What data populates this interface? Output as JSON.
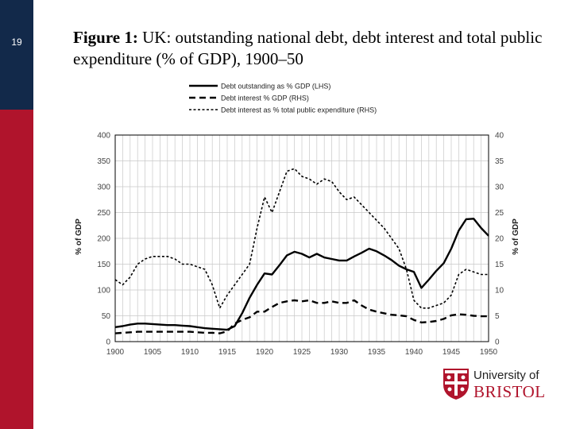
{
  "slide": {
    "number": "19",
    "title_bold": "Figure 1:",
    "title_rest": " UK: outstanding national debt, debt interest and total public expenditure (% of GDP), 1900–50"
  },
  "logo": {
    "line1": "University of",
    "line2": "BRISTOL"
  },
  "colors": {
    "navy": "#12294a",
    "crimson": "#b0142c"
  },
  "chart_data": {
    "type": "line",
    "title": "",
    "xlabel": "",
    "ylabel": "% of GDP",
    "y2label": "% of GDP",
    "xlim": [
      1900,
      1950
    ],
    "ylim": [
      0,
      400
    ],
    "y2lim": [
      0,
      40
    ],
    "xticks": [
      "1900",
      "1905",
      "1910",
      "1915",
      "1920",
      "1925",
      "1930",
      "1935",
      "1940",
      "1945",
      "1950"
    ],
    "yticks": [
      "0",
      "50",
      "100",
      "150",
      "200",
      "250",
      "300",
      "350",
      "400"
    ],
    "y2ticks": [
      "0",
      "5",
      "10",
      "15",
      "20",
      "25",
      "30",
      "35",
      "40"
    ],
    "legend_position": "top",
    "grid": true,
    "x": [
      1900,
      1901,
      1902,
      1903,
      1904,
      1905,
      1906,
      1907,
      1908,
      1909,
      1910,
      1911,
      1912,
      1913,
      1914,
      1915,
      1916,
      1917,
      1918,
      1919,
      1920,
      1921,
      1922,
      1923,
      1924,
      1925,
      1926,
      1927,
      1928,
      1929,
      1930,
      1931,
      1932,
      1933,
      1934,
      1935,
      1936,
      1937,
      1938,
      1939,
      1940,
      1941,
      1942,
      1943,
      1944,
      1945,
      1946,
      1947,
      1948,
      1949,
      1950
    ],
    "series": [
      {
        "name": "Debt outstanding as % GDP (LHS)",
        "axis": "left",
        "style": "solid",
        "values": [
          28,
          30,
          33,
          35,
          35,
          34,
          33,
          32,
          32,
          31,
          30,
          28,
          26,
          25,
          24,
          23,
          30,
          55,
          85,
          110,
          132,
          130,
          148,
          167,
          174,
          170,
          163,
          170,
          163,
          160,
          157,
          157,
          165,
          172,
          180,
          175,
          167,
          158,
          147,
          140,
          135,
          104,
          120,
          137,
          152,
          180,
          215,
          237,
          238,
          220,
          205
        ]
      },
      {
        "name": "Debt interest % GDP (RHS)",
        "axis": "right",
        "style": "dash",
        "values": [
          1.6,
          1.7,
          1.8,
          1.9,
          1.9,
          1.9,
          1.9,
          1.9,
          1.9,
          1.9,
          1.9,
          1.8,
          1.7,
          1.7,
          1.6,
          2.0,
          3.5,
          4.2,
          4.7,
          5.8,
          5.8,
          6.7,
          7.5,
          7.8,
          8.0,
          7.8,
          8.0,
          7.5,
          7.5,
          7.8,
          7.5,
          7.5,
          8.0,
          7.0,
          6.2,
          5.8,
          5.5,
          5.2,
          5.1,
          4.9,
          4.2,
          3.7,
          3.8,
          4.0,
          4.4,
          5.1,
          5.3,
          5.2,
          5.0,
          4.9,
          4.9
        ]
      },
      {
        "name": "Debt interest as % total public expenditure (RHS)",
        "axis": "right",
        "style": "dot",
        "values": [
          12,
          11,
          12.5,
          15,
          16,
          16.5,
          16.5,
          16.5,
          16,
          15,
          15,
          14.5,
          14,
          11,
          6.5,
          9,
          11,
          13,
          15,
          22,
          28,
          25,
          29,
          33,
          33.5,
          32,
          31.5,
          30.5,
          31.5,
          31,
          29,
          27.5,
          28,
          26.5,
          25,
          23.5,
          22,
          20,
          18,
          14,
          8,
          6.5,
          6.5,
          7,
          7.5,
          9,
          13,
          14,
          13.5,
          13,
          13
        ]
      }
    ]
  }
}
